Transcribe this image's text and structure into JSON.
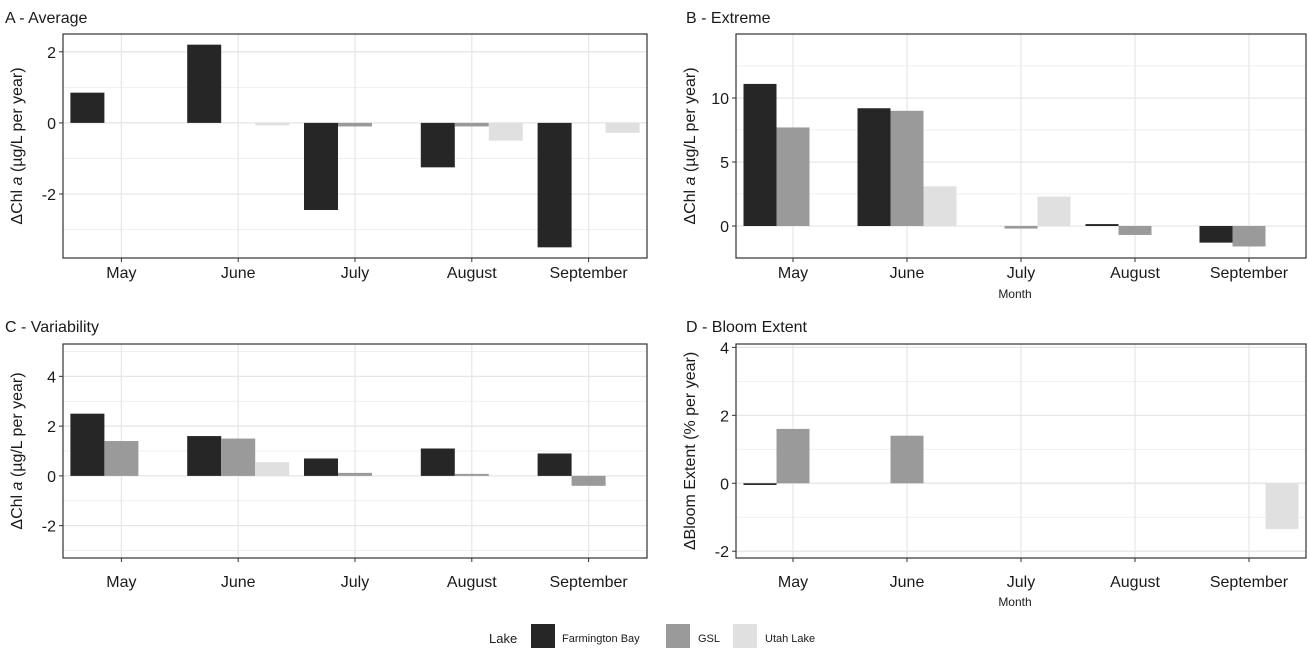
{
  "chart_data": [
    {
      "type": "bar",
      "title": "A - Average",
      "ylabel": "ΔChl a (µg/L per year)",
      "xlabel": "",
      "categories": [
        "May",
        "June",
        "July",
        "August",
        "September"
      ],
      "ylim": [
        -3.8,
        2.5
      ],
      "yticks": [
        -2,
        0,
        2
      ],
      "grid": true,
      "series": [
        {
          "name": "Farmington Bay",
          "values": [
            0.85,
            2.2,
            -2.45,
            -1.25,
            -3.5
          ]
        },
        {
          "name": "GSL",
          "values": [
            0,
            0,
            -0.1,
            -0.1,
            0
          ]
        },
        {
          "name": "Utah Lake",
          "values": [
            0,
            -0.07,
            0,
            -0.5,
            -0.28
          ]
        }
      ]
    },
    {
      "type": "bar",
      "title": "B - Extreme",
      "ylabel": "ΔChl a (µg/L per year)",
      "xlabel": "Month",
      "categories": [
        "May",
        "June",
        "July",
        "August",
        "September"
      ],
      "ylim": [
        -2.5,
        15
      ],
      "yticks": [
        0,
        5,
        10
      ],
      "grid": true,
      "series": [
        {
          "name": "Farmington Bay",
          "values": [
            11.1,
            9.2,
            0,
            0.15,
            -1.3
          ]
        },
        {
          "name": "GSL",
          "values": [
            7.7,
            9.0,
            -0.2,
            -0.7,
            -1.6
          ]
        },
        {
          "name": "Utah Lake",
          "values": [
            0,
            3.1,
            2.3,
            0,
            0
          ]
        }
      ]
    },
    {
      "type": "bar",
      "title": "C - Variability",
      "ylabel": "ΔChl a (µg/L per year)",
      "xlabel": "",
      "categories": [
        "May",
        "June",
        "July",
        "August",
        "September"
      ],
      "ylim": [
        -3.3,
        5.3
      ],
      "yticks": [
        -2,
        0,
        2,
        4
      ],
      "grid": true,
      "series": [
        {
          "name": "Farmington Bay",
          "values": [
            2.5,
            1.6,
            0.7,
            1.1,
            0.9
          ]
        },
        {
          "name": "GSL",
          "values": [
            1.4,
            1.5,
            0.12,
            0.08,
            -0.4
          ]
        },
        {
          "name": "Utah Lake",
          "values": [
            0,
            0.55,
            0,
            0,
            0
          ]
        }
      ]
    },
    {
      "type": "bar",
      "title": "D - Bloom Extent",
      "ylabel": "ΔBloom Extent (% per year)",
      "xlabel": "Month",
      "categories": [
        "May",
        "June",
        "July",
        "August",
        "September"
      ],
      "ylim": [
        -2.2,
        4.1
      ],
      "yticks": [
        -2,
        0,
        2,
        4
      ],
      "grid": true,
      "series": [
        {
          "name": "Farmington Bay",
          "values": [
            -0.05,
            0,
            0,
            0,
            0
          ]
        },
        {
          "name": "GSL",
          "values": [
            1.6,
            1.4,
            0,
            0,
            0
          ]
        },
        {
          "name": "Utah Lake",
          "values": [
            0,
            0,
            0,
            0,
            -1.35
          ]
        }
      ]
    }
  ],
  "legend": {
    "title": "Lake",
    "position": "bottom",
    "entries": [
      {
        "label": "Farmington Bay",
        "color": "#262626"
      },
      {
        "label": "GSL",
        "color": "#9a9a9a"
      },
      {
        "label": "Utah Lake",
        "color": "#e0e0e0"
      }
    ]
  },
  "colors": {
    "grid": "#e6e6e6",
    "border": "#333333",
    "zero_line": "#bdbdbd"
  }
}
